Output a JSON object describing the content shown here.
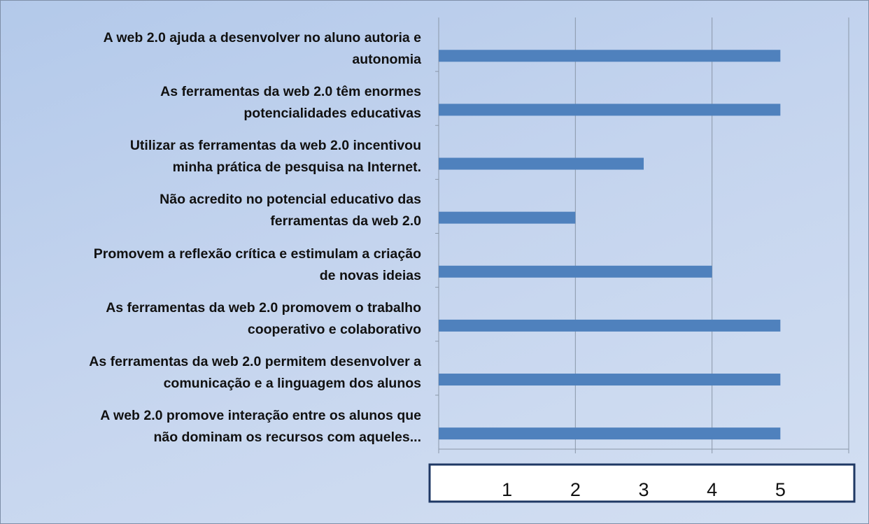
{
  "chart_data": {
    "type": "barh",
    "categories": [
      "A web 2.0 ajuda a desenvolver no aluno autoria e\nautonomia",
      "As ferramentas da web 2.0 têm enormes\npotencialidades educativas",
      "Utilizar as ferramentas da web 2.0 incentivou\nminha prática de pesquisa na Internet.",
      "Não acredito no potencial educativo das\nferramentas da web 2.0",
      "Promovem a reflexão crítica e estimulam a criação\nde novas ideias",
      "As ferramentas da web 2.0 promovem o trabalho\ncooperativo e colaborativo",
      "As ferramentas da web 2.0 permitem desenvolver a\ncomunicação e a linguagem dos alunos",
      "A web 2.0 promove interação entre os alunos que\nnão dominam os recursos com aqueles..."
    ],
    "values": [
      5,
      5,
      3,
      2,
      4,
      5,
      5,
      5
    ],
    "color": "#4f81bd",
    "xlim": [
      0,
      6
    ],
    "xticks": [
      0,
      2,
      4,
      6
    ],
    "grid": true,
    "scale_labels": [
      1,
      2,
      3,
      4,
      5
    ]
  }
}
